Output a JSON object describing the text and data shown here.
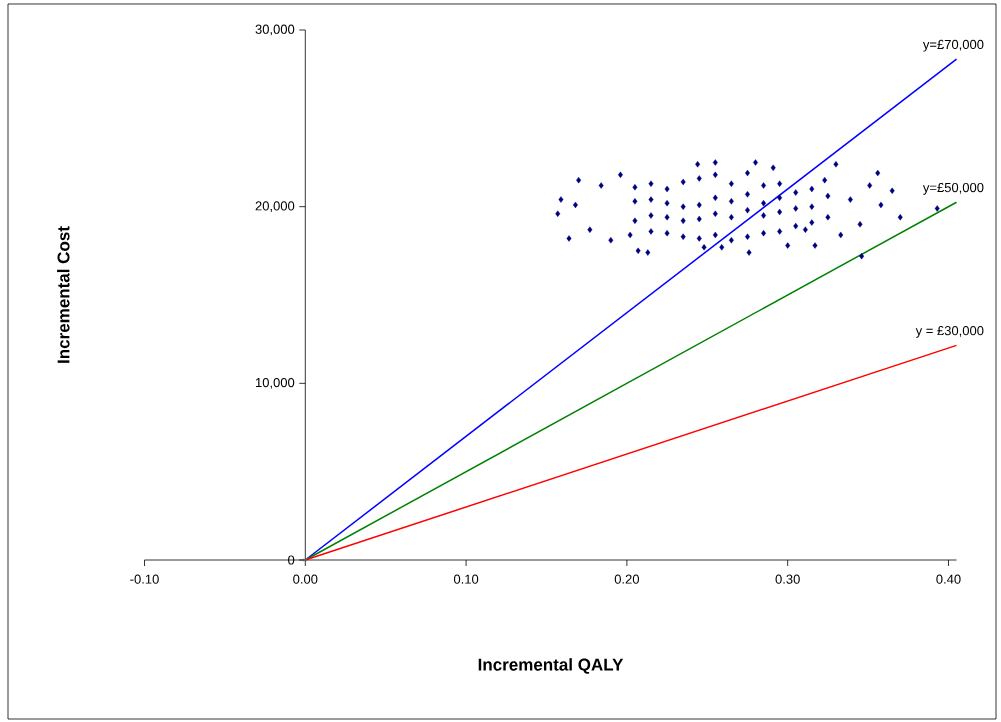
{
  "chart_data": {
    "type": "scatter",
    "xlabel": "Incremental QALY",
    "ylabel": "Incremental Cost",
    "xlim": [
      -0.1,
      0.405
    ],
    "ylim": [
      0,
      30000
    ],
    "xticks": [
      {
        "value": -0.1,
        "label": "-0.10"
      },
      {
        "value": 0,
        "label": "0.00"
      },
      {
        "value": 0.1,
        "label": "0.10"
      },
      {
        "value": 0.2,
        "label": "0.20"
      },
      {
        "value": 0.3,
        "label": "0.30"
      },
      {
        "value": 0.4,
        "label": "0.40"
      }
    ],
    "yticks": [
      0,
      {
        "value": 10000,
        "label": "10,000"
      },
      {
        "value": 20000,
        "label": "20,000"
      },
      {
        "value": 30000,
        "label": "30,000"
      }
    ],
    "grid": false,
    "series": [
      {
        "type": "line",
        "name": "y=£70,000",
        "color": "#0000ff",
        "x": [
          0,
          0.405
        ],
        "values": [
          0,
          28350
        ]
      },
      {
        "type": "line",
        "name": "y=£50,000",
        "color": "#008000",
        "x": [
          0,
          0.405
        ],
        "values": [
          0,
          20250
        ]
      },
      {
        "type": "line",
        "name": "y = £30,000",
        "color": "#ff0000",
        "x": [
          0,
          0.405
        ],
        "values": [
          0,
          12150
        ]
      },
      {
        "color": "#000080",
        "marker": "diamond",
        "x": [
          0.17,
          0.157,
          0.164,
          0.207,
          0.213,
          0.244,
          0.255,
          0.28,
          0.291,
          0.276,
          0.259,
          0.248,
          0.33,
          0.356,
          0.365,
          0.37,
          0.393,
          0.346,
          0.317,
          0.3,
          0.159,
          0.168,
          0.177,
          0.184,
          0.19,
          0.196,
          0.202,
          0.345,
          0.351,
          0.339,
          0.358,
          0.333,
          0.323,
          0.311,
          0.205,
          0.205,
          0.205,
          0.215,
          0.215,
          0.215,
          0.215,
          0.225,
          0.225,
          0.225,
          0.225,
          0.235,
          0.235,
          0.235,
          0.235,
          0.245,
          0.245,
          0.245,
          0.245,
          0.255,
          0.255,
          0.255,
          0.255,
          0.265,
          0.265,
          0.265,
          0.265,
          0.275,
          0.275,
          0.275,
          0.275,
          0.285,
          0.285,
          0.285,
          0.285,
          0.295,
          0.295,
          0.295,
          0.295,
          0.305,
          0.305,
          0.305,
          0.315,
          0.315,
          0.315,
          0.325,
          0.325
        ],
        "values": [
          21500,
          19600,
          18200,
          17500,
          17400,
          22400,
          22500,
          22500,
          22200,
          17400,
          17700,
          17700,
          22400,
          21900,
          20900,
          19400,
          19900,
          17200,
          17800,
          17800,
          20400,
          20100,
          18700,
          21200,
          18100,
          21800,
          18400,
          19000,
          21200,
          20400,
          20100,
          18400,
          21500,
          18700,
          19200,
          20300,
          21100,
          18600,
          19500,
          20400,
          21300,
          18500,
          19400,
          20200,
          21000,
          18300,
          19200,
          20000,
          21400,
          18200,
          19300,
          20100,
          21600,
          18400,
          19600,
          20500,
          21800,
          18100,
          19400,
          20300,
          21300,
          18300,
          19800,
          20700,
          21900,
          18500,
          19500,
          20200,
          21200,
          18600,
          19700,
          20500,
          21300,
          18900,
          19900,
          20800,
          19100,
          20000,
          21000,
          19400,
          20600
        ]
      },
      {
        "color": "#00cccc",
        "marker": "cross",
        "x": [
          0
        ],
        "values": [
          0
        ]
      }
    ]
  }
}
